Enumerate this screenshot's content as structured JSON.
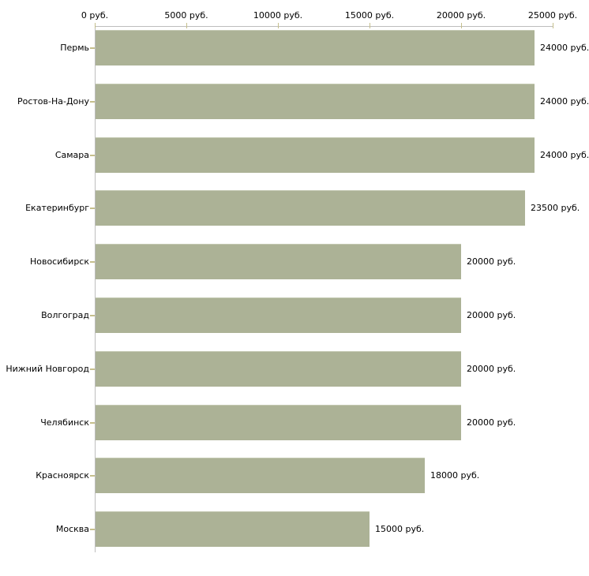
{
  "chart_data": {
    "type": "bar",
    "orientation": "horizontal",
    "title": "",
    "xlabel": "",
    "ylabel": "",
    "unit": "руб.",
    "categories": [
      "Пермь",
      "Ростов-На-Дону",
      "Самара",
      "Екатеринбург",
      "Новосибирск",
      "Волгоград",
      "Нижний Новгород",
      "Челябинск",
      "Красноярск",
      "Москва"
    ],
    "values": [
      24000,
      24000,
      24000,
      23500,
      20000,
      20000,
      20000,
      20000,
      18000,
      15000
    ],
    "value_labels": [
      "24000 руб.",
      "24000 руб.",
      "24000 руб.",
      "23500 руб.",
      "20000 руб.",
      "20000 руб.",
      "20000 руб.",
      "20000 руб.",
      "18000 руб.",
      "15000 руб."
    ],
    "x_ticks": [
      0,
      5000,
      10000,
      15000,
      20000,
      25000
    ],
    "x_tick_labels": [
      "0 руб.",
      "5000 руб.",
      "10000 руб.",
      "15000 руб.",
      "20000 руб.",
      "25000 руб."
    ],
    "xlim": [
      0,
      25000
    ],
    "grid": false,
    "legend": false,
    "bar_color": "#acb296",
    "axis_color": "#bdbdbd",
    "tick_color": "#c5bf8c",
    "text_color": "#000000",
    "background_color": "#ffffff"
  }
}
